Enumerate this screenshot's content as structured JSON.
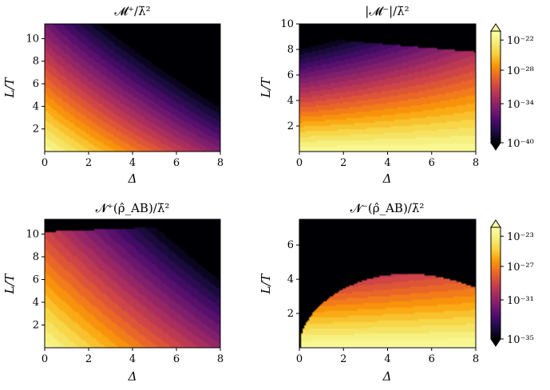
{
  "chart_data": [
    {
      "type": "heatmap",
      "id": "m-plus",
      "title": "𝓜⁺/λ̄²",
      "xlabel": "Δ",
      "ylabel": "L/T",
      "xlim": [
        0,
        8
      ],
      "ylim": [
        0,
        11.3
      ],
      "xticks": [
        "0",
        "2",
        "4",
        "6",
        "8"
      ],
      "yticks": [
        "2",
        "4",
        "6",
        "8",
        "10"
      ],
      "colorbar": "cb-top"
    },
    {
      "type": "heatmap",
      "id": "m-minus",
      "title": "|𝓜⁻|/λ̄²",
      "xlabel": "Δ",
      "ylabel": "L/T",
      "xlim": [
        0,
        8
      ],
      "ylim": [
        0,
        10
      ],
      "xticks": [
        "0",
        "2",
        "4",
        "6",
        "8"
      ],
      "yticks": [
        "2",
        "4",
        "6",
        "8",
        "10"
      ],
      "colorbar": "cb-top"
    },
    {
      "type": "heatmap",
      "id": "n-plus",
      "title": "𝓝⁺(ρ̂_AB)/λ̄²",
      "xlabel": "Δ",
      "ylabel": "L/T",
      "xlim": [
        0,
        8
      ],
      "ylim": [
        0,
        11.3
      ],
      "xticks": [
        "0",
        "2",
        "4",
        "6",
        "8"
      ],
      "yticks": [
        "2",
        "4",
        "6",
        "8",
        "10"
      ],
      "colorbar": "cb-bottom"
    },
    {
      "type": "heatmap",
      "id": "n-minus",
      "title": "𝓝⁻(ρ̂_AB)/λ̄²",
      "xlabel": "Δ",
      "ylabel": "L/T",
      "xlim": [
        0,
        8
      ],
      "ylim": [
        0,
        7.5
      ],
      "xticks": [
        "0",
        "2",
        "4",
        "6",
        "8"
      ],
      "yticks": [
        "2",
        "4",
        "6"
      ],
      "colorbar": "cb-bottom"
    }
  ],
  "colorbars": {
    "cb-top": {
      "scale": "log",
      "ticks": [
        "10⁻²²",
        "10⁻²⁸",
        "10⁻³⁴",
        "10⁻⁴⁰"
      ],
      "extend": "both",
      "colormap": "inferno"
    },
    "cb-bottom": {
      "scale": "log",
      "ticks": [
        "10⁻²³",
        "10⁻²⁷",
        "10⁻³¹",
        "10⁻³⁵"
      ],
      "extend": "both",
      "colormap": "inferno"
    }
  }
}
